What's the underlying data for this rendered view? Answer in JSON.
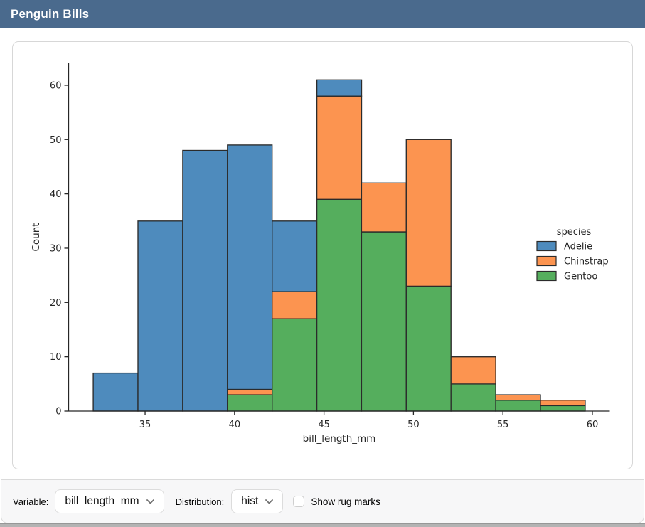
{
  "window": {
    "title": "Penguin Bills"
  },
  "theme": {
    "header_bg": "#4A6A8D",
    "header_text": "#FFFFFF",
    "toolbar_bg": "#F7F7F8",
    "card_border": "#D7D7D7",
    "axis_color": "#262626",
    "bar_edge_color": "#2B2B2B"
  },
  "chart_data": {
    "type": "bar",
    "variant": "stacked-histogram",
    "title": "",
    "xlabel": "bill_length_mm",
    "ylabel": "Count",
    "grid": false,
    "bin_edges": [
      32.1,
      34.6,
      37.1,
      39.6,
      42.1,
      44.6,
      47.1,
      49.6,
      52.1,
      54.6,
      57.1,
      59.6
    ],
    "xticks": [
      35,
      40,
      45,
      50,
      55,
      60
    ],
    "yticks": [
      0,
      10,
      20,
      30,
      40,
      50,
      60
    ],
    "xlim": [
      30.725,
      60.975
    ],
    "ylim": [
      0,
      64.05
    ],
    "series": [
      {
        "name": "Adelie",
        "color": "#4E8BBD",
        "values": [
          7,
          35,
          48,
          45,
          13,
          3,
          0,
          0,
          0,
          0,
          0
        ]
      },
      {
        "name": "Chinstrap",
        "color": "#FC9450",
        "values": [
          0,
          0,
          0,
          1,
          5,
          19,
          9,
          27,
          5,
          1,
          1
        ]
      },
      {
        "name": "Gentoo",
        "color": "#55AE5D",
        "values": [
          0,
          0,
          0,
          3,
          17,
          39,
          33,
          23,
          5,
          2,
          1
        ]
      }
    ],
    "stack_order_bottom_to_top": [
      "Gentoo",
      "Chinstrap",
      "Adelie"
    ],
    "totals": [
      7,
      35,
      48,
      49,
      35,
      61,
      42,
      50,
      10,
      3,
      2
    ],
    "legend": {
      "title": "species",
      "position": "center-right"
    }
  },
  "controls": {
    "variable": {
      "label": "Variable:",
      "value": "bill_length_mm"
    },
    "distribution": {
      "label": "Distribution:",
      "value": "hist"
    },
    "rug": {
      "label": "Show rug marks",
      "checked": false
    }
  }
}
